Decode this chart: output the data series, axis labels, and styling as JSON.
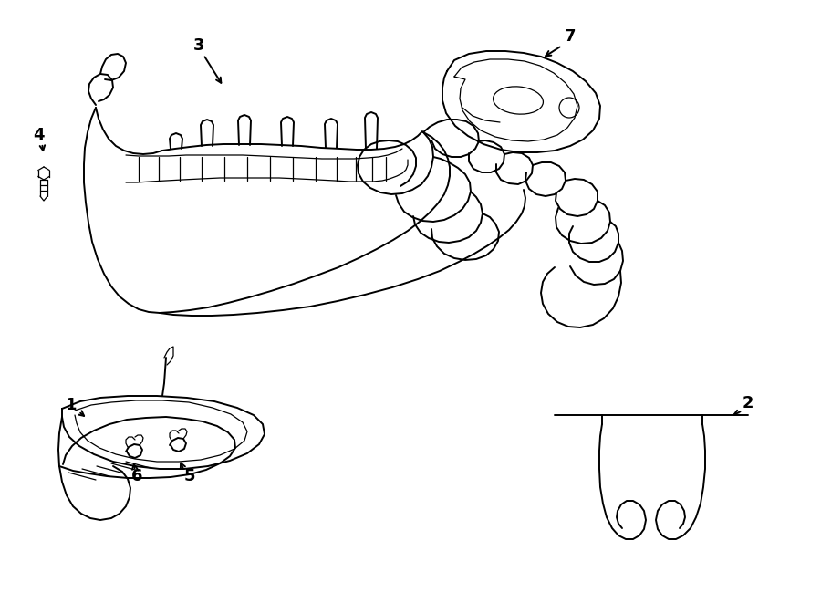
{
  "bg_color": "#ffffff",
  "line_color": "#000000",
  "lw": 1.4,
  "tlw": 0.9,
  "fig_width": 9.0,
  "fig_height": 6.61,
  "dpi": 100,
  "label_fs": 13
}
